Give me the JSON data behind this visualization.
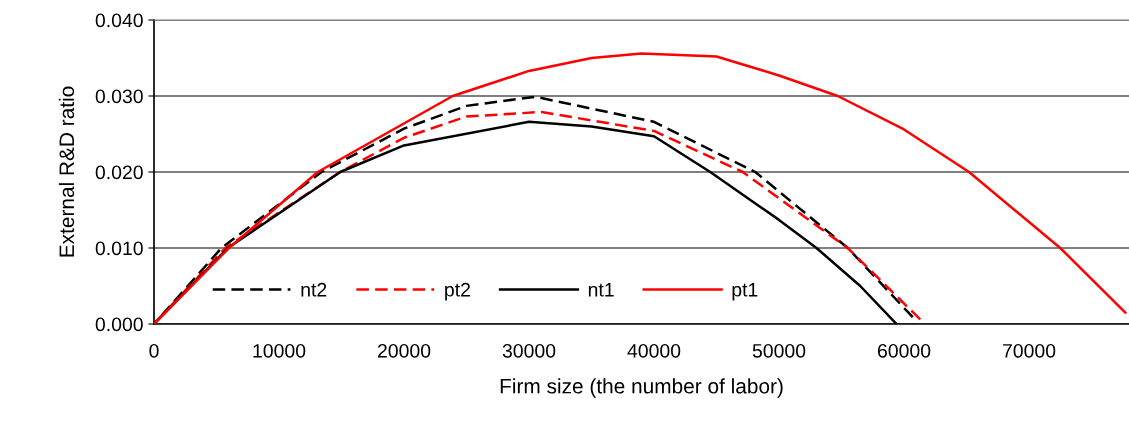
{
  "chart_data": {
    "type": "line",
    "xlabel": "Firm size (the number of labor)",
    "ylabel": "External R&D ratio",
    "xlim": [
      0,
      78000
    ],
    "xticks": [
      0,
      10000,
      20000,
      30000,
      40000,
      50000,
      60000,
      70000
    ],
    "ylim": [
      0,
      0.04
    ],
    "yticks": [
      {
        "value": 0,
        "label": "0.000"
      },
      {
        "value": 0.01,
        "label": "0.010"
      },
      {
        "value": 0.02,
        "label": "0.020"
      },
      {
        "value": 0.03,
        "label": "0.030"
      },
      {
        "value": 0.04,
        "label": "0.040"
      }
    ],
    "grid": "y",
    "legend": "bottom",
    "marker": "none",
    "series": [
      {
        "name": "nt2",
        "color": "#000000",
        "line_style": "dashed",
        "x": [
          0,
          5400,
          13400,
          20000,
          25000,
          30500,
          40000,
          48100,
          55500,
          60700
        ],
        "values": [
          0,
          0.01,
          0.02,
          0.0257,
          0.0287,
          0.0299,
          0.0266,
          0.02,
          0.01,
          0.0009
        ]
      },
      {
        "name": "pt2",
        "color": "#ff0000",
        "line_style": "dashed",
        "x": [
          0,
          5700,
          14900,
          20000,
          25000,
          31000,
          40000,
          47100,
          55500,
          61300
        ],
        "values": [
          0,
          0.01,
          0.02,
          0.0245,
          0.0273,
          0.0279,
          0.0254,
          0.02,
          0.01,
          0.0006
        ]
      },
      {
        "name": "nt1",
        "color": "#000000",
        "line_style": "solid",
        "x": [
          0,
          5900,
          14900,
          20000,
          30000,
          35000,
          40000,
          44500,
          50000,
          53000,
          56500,
          59400
        ],
        "values": [
          0,
          0.01,
          0.02,
          0.0235,
          0.0266,
          0.026,
          0.0247,
          0.02,
          0.0137,
          0.01,
          0.005,
          0
        ]
      },
      {
        "name": "pt1",
        "color": "#ff0000",
        "line_style": "solid",
        "x": [
          0,
          6000,
          13100,
          23900,
          30000,
          35000,
          39000,
          45000,
          50000,
          54700,
          60000,
          65200,
          72500,
          77700
        ],
        "values": [
          0,
          0.01,
          0.02,
          0.03,
          0.0333,
          0.035,
          0.0356,
          0.0352,
          0.0327,
          0.03,
          0.0256,
          0.02,
          0.01,
          0.0015
        ]
      }
    ]
  }
}
